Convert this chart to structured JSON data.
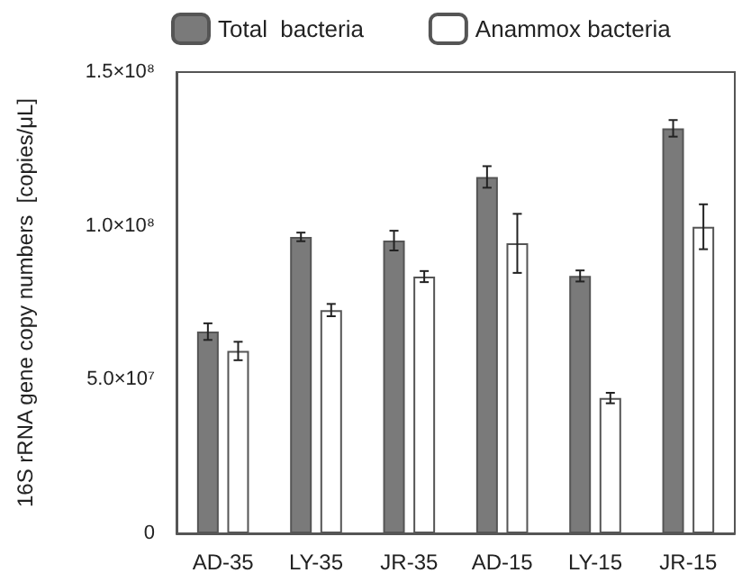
{
  "chart_data": {
    "type": "bar",
    "ylabel": "16S rRNA gene copy numbers  [copies/μL]",
    "categories": [
      "AD-35",
      "LY-35",
      "JR-35",
      "AD-15",
      "LY-15",
      "JR-15"
    ],
    "series": [
      {
        "name": "Total  bacteria",
        "color": "#7a7a7a",
        "values": [
          65600000,
          96400000,
          95200000,
          115900000,
          83700000,
          131700000
        ],
        "errors": [
          2700000,
          1400000,
          3200000,
          3500000,
          1800000,
          2700000
        ]
      },
      {
        "name": "Anammox bacteria",
        "color": "#ffffff",
        "values": [
          59300000,
          72600000,
          83500000,
          94300000,
          44000000,
          99700000
        ],
        "errors": [
          3000000,
          2000000,
          1800000,
          9600000,
          1700000,
          7300000
        ]
      }
    ],
    "ylim": [
      0,
      150000000
    ],
    "yticks": [
      0,
      {
        "value": 50000000,
        "label": "5.0×10⁷"
      },
      {
        "value": 100000000,
        "label": "1.0×10⁸"
      },
      {
        "value": 150000000,
        "label": "1.5×10⁸"
      }
    ],
    "grid": false,
    "legend": "top"
  }
}
